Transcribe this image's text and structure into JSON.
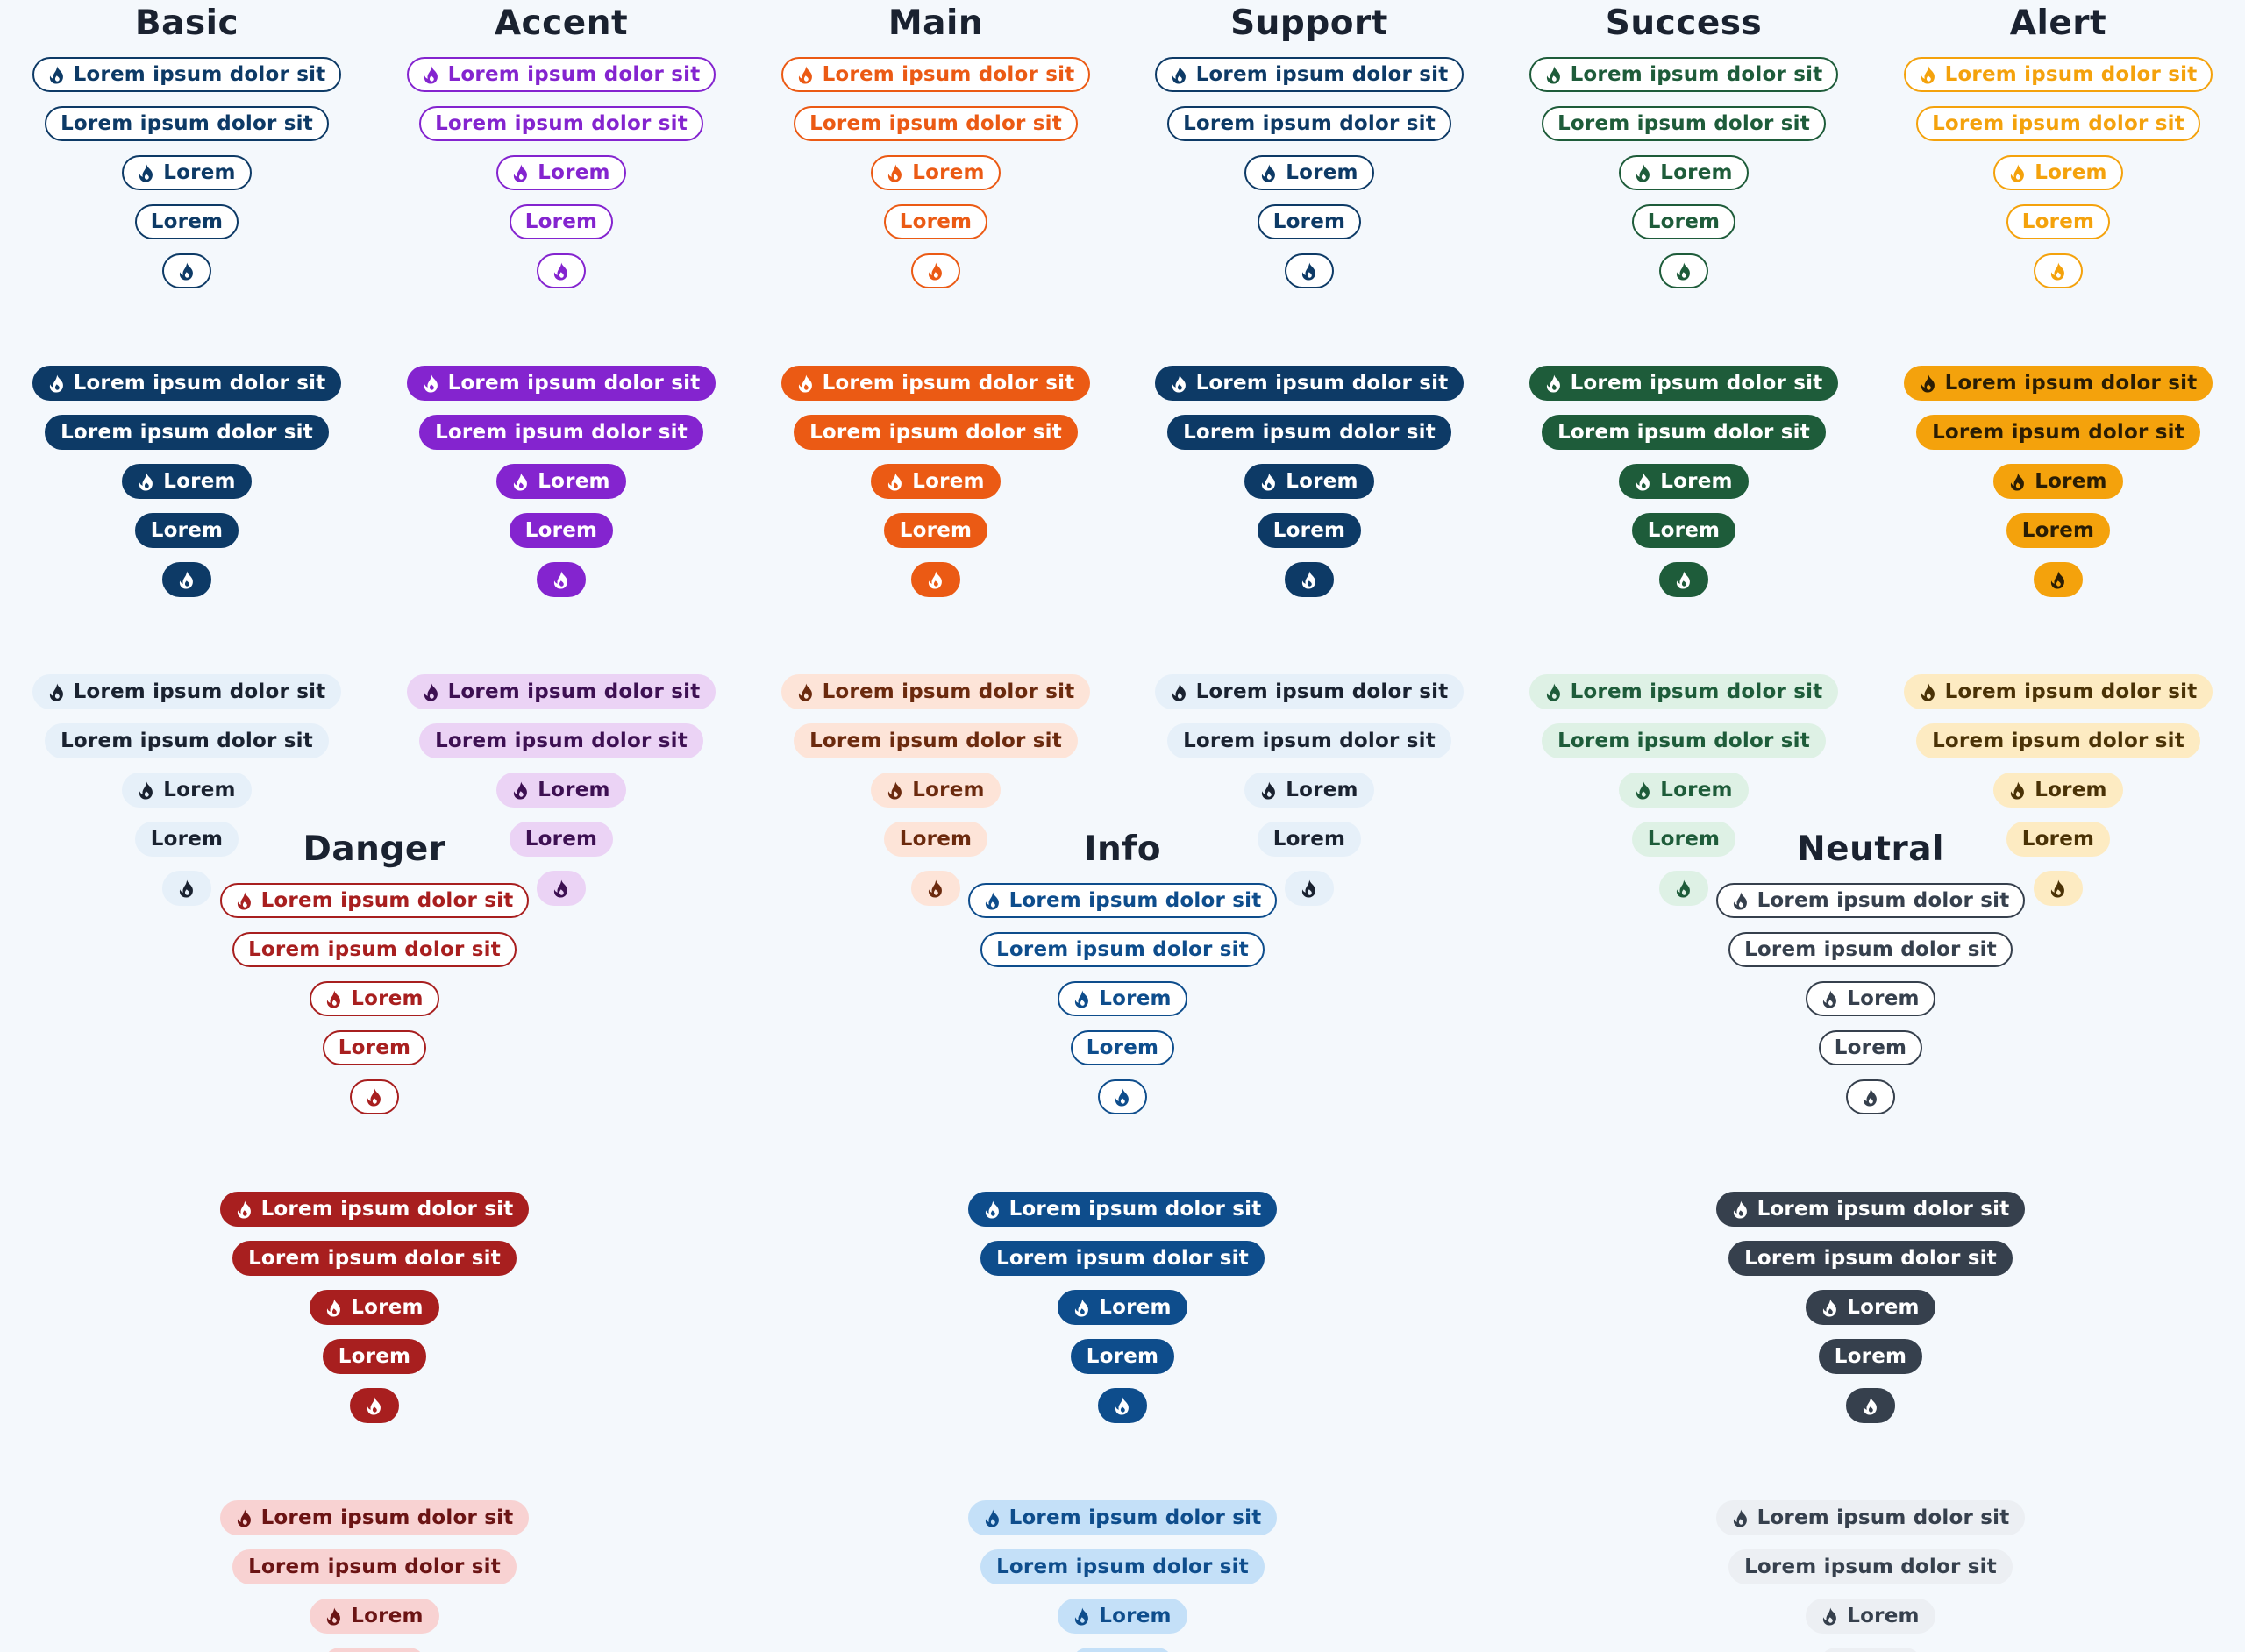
{
  "icon": "flame-icon",
  "labels": {
    "long": "Lorem ipsum dolor sit",
    "short": "Lorem"
  },
  "groups": [
    {
      "id": "basic",
      "title": "Basic",
      "colors": {
        "strong": "#0d3a66",
        "tint": "#e6f0f9",
        "tint_text": "#1a2230",
        "tint_icon": "#1a2230"
      }
    },
    {
      "id": "accent",
      "title": "Accent",
      "colors": {
        "strong": "#8424cf",
        "tint": "#ebd3f5",
        "tint_text": "#3d1052",
        "tint_icon": "#3d1052"
      }
    },
    {
      "id": "main",
      "title": "Main",
      "colors": {
        "strong": "#eb5a14",
        "tint": "#fde4d8",
        "tint_text": "#6b2a0e",
        "tint_icon": "#6b2a0e"
      }
    },
    {
      "id": "support",
      "title": "Support",
      "colors": {
        "strong": "#0d3a66",
        "tint": "#e6f0f9",
        "tint_text": "#1a2230",
        "tint_icon": "#1a2230"
      }
    },
    {
      "id": "success",
      "title": "Success",
      "colors": {
        "strong": "#1e5c3a",
        "tint": "#def1e5",
        "tint_text": "#1e5c3a",
        "tint_icon": "#1e5c3a"
      }
    },
    {
      "id": "alert",
      "title": "Alert",
      "colors": {
        "strong": "#f4a20c",
        "tint": "#fdebc2",
        "tint_text": "#4a3206",
        "tint_icon": "#4a3206"
      }
    },
    {
      "id": "danger",
      "title": "Danger",
      "colors": {
        "strong": "#a81f1f",
        "tint": "#f8d2d2",
        "tint_text": "#6b1414",
        "tint_icon": "#6b1414"
      }
    },
    {
      "id": "info",
      "title": "Info",
      "colors": {
        "strong": "#0e4d8c",
        "tint": "#c4e0f8",
        "tint_text": "#0e4d8c",
        "tint_icon": "#0e4d8c"
      }
    },
    {
      "id": "neutral",
      "title": "Neutral",
      "colors": {
        "strong": "#36404d",
        "tint": "#eceff3",
        "tint_text": "#36404d",
        "tint_icon": "#36404d"
      }
    }
  ]
}
